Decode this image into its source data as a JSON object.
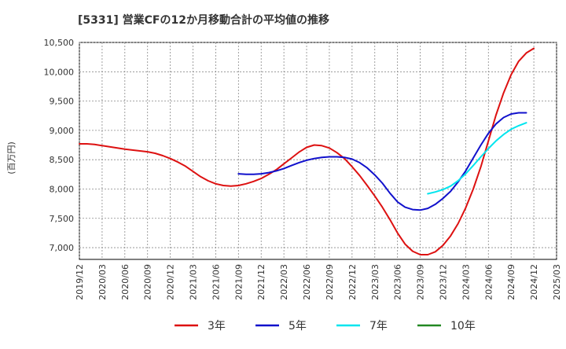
{
  "chart_data": {
    "type": "line",
    "title": "[5331]  営業CFの12か月移動合計の平均値の推移",
    "ylabel": "(百万円)",
    "xlabel": "",
    "ylim": [
      6800,
      10500
    ],
    "y_ticks": [
      7000,
      7500,
      8000,
      8500,
      9000,
      9500,
      10000,
      10500
    ],
    "y_tick_labels": [
      "7,000",
      "7,500",
      "8,000",
      "8,500",
      "9,000",
      "9,500",
      "10,000",
      "10,500"
    ],
    "x_tick_labels": [
      "2019/12",
      "2020/03",
      "2020/06",
      "2020/09",
      "2020/12",
      "2021/03",
      "2021/06",
      "2021/09",
      "2021/12",
      "2022/03",
      "2022/06",
      "2022/09",
      "2022/12",
      "2023/03",
      "2023/06",
      "2023/09",
      "2023/12",
      "2024/03",
      "2024/06",
      "2024/09",
      "2024/12",
      "2025/03"
    ],
    "grid": true,
    "legend_position": "bottom",
    "series": [
      {
        "name": "3年",
        "color": "#dd1111",
        "points": [
          [
            "2019/12",
            8770
          ],
          [
            "2020/01",
            8770
          ],
          [
            "2020/02",
            8760
          ],
          [
            "2020/03",
            8740
          ],
          [
            "2020/04",
            8720
          ],
          [
            "2020/05",
            8700
          ],
          [
            "2020/06",
            8680
          ],
          [
            "2020/07",
            8665
          ],
          [
            "2020/08",
            8650
          ],
          [
            "2020/09",
            8635
          ],
          [
            "2020/10",
            8610
          ],
          [
            "2020/11",
            8570
          ],
          [
            "2020/12",
            8520
          ],
          [
            "2021/01",
            8460
          ],
          [
            "2021/02",
            8390
          ],
          [
            "2021/03",
            8300
          ],
          [
            "2021/04",
            8210
          ],
          [
            "2021/05",
            8140
          ],
          [
            "2021/06",
            8090
          ],
          [
            "2021/07",
            8060
          ],
          [
            "2021/08",
            8050
          ],
          [
            "2021/09",
            8060
          ],
          [
            "2021/10",
            8090
          ],
          [
            "2021/11",
            8130
          ],
          [
            "2021/12",
            8180
          ],
          [
            "2022/01",
            8250
          ],
          [
            "2022/02",
            8330
          ],
          [
            "2022/03",
            8430
          ],
          [
            "2022/04",
            8530
          ],
          [
            "2022/05",
            8630
          ],
          [
            "2022/06",
            8710
          ],
          [
            "2022/07",
            8750
          ],
          [
            "2022/08",
            8740
          ],
          [
            "2022/09",
            8700
          ],
          [
            "2022/10",
            8620
          ],
          [
            "2022/11",
            8520
          ],
          [
            "2022/12",
            8380
          ],
          [
            "2023/01",
            8230
          ],
          [
            "2023/02",
            8060
          ],
          [
            "2023/03",
            7880
          ],
          [
            "2023/04",
            7690
          ],
          [
            "2023/05",
            7480
          ],
          [
            "2023/06",
            7250
          ],
          [
            "2023/07",
            7060
          ],
          [
            "2023/08",
            6940
          ],
          [
            "2023/09",
            6880
          ],
          [
            "2023/10",
            6880
          ],
          [
            "2023/11",
            6930
          ],
          [
            "2023/12",
            7040
          ],
          [
            "2024/01",
            7200
          ],
          [
            "2024/02",
            7410
          ],
          [
            "2024/03",
            7680
          ],
          [
            "2024/04",
            8000
          ],
          [
            "2024/05",
            8380
          ],
          [
            "2024/06",
            8820
          ],
          [
            "2024/07",
            9260
          ],
          [
            "2024/08",
            9640
          ],
          [
            "2024/09",
            9950
          ],
          [
            "2024/10",
            10180
          ],
          [
            "2024/11",
            10320
          ],
          [
            "2024/12",
            10400
          ]
        ]
      },
      {
        "name": "5年",
        "color": "#1111cc",
        "points": [
          [
            "2021/09",
            8260
          ],
          [
            "2021/10",
            8250
          ],
          [
            "2021/11",
            8250
          ],
          [
            "2021/12",
            8260
          ],
          [
            "2022/01",
            8280
          ],
          [
            "2022/02",
            8310
          ],
          [
            "2022/03",
            8350
          ],
          [
            "2022/04",
            8400
          ],
          [
            "2022/05",
            8450
          ],
          [
            "2022/06",
            8490
          ],
          [
            "2022/07",
            8520
          ],
          [
            "2022/08",
            8540
          ],
          [
            "2022/09",
            8550
          ],
          [
            "2022/10",
            8550
          ],
          [
            "2022/11",
            8540
          ],
          [
            "2022/12",
            8510
          ],
          [
            "2023/01",
            8450
          ],
          [
            "2023/02",
            8360
          ],
          [
            "2023/03",
            8240
          ],
          [
            "2023/04",
            8100
          ],
          [
            "2023/05",
            7930
          ],
          [
            "2023/06",
            7780
          ],
          [
            "2023/07",
            7690
          ],
          [
            "2023/08",
            7650
          ],
          [
            "2023/09",
            7640
          ],
          [
            "2023/10",
            7670
          ],
          [
            "2023/11",
            7740
          ],
          [
            "2023/12",
            7840
          ],
          [
            "2024/01",
            7960
          ],
          [
            "2024/02",
            8120
          ],
          [
            "2024/03",
            8310
          ],
          [
            "2024/04",
            8530
          ],
          [
            "2024/05",
            8750
          ],
          [
            "2024/06",
            8950
          ],
          [
            "2024/07",
            9110
          ],
          [
            "2024/08",
            9220
          ],
          [
            "2024/09",
            9280
          ],
          [
            "2024/10",
            9300
          ],
          [
            "2024/11",
            9300
          ]
        ]
      },
      {
        "name": "7年",
        "color": "#00e5ee",
        "points": [
          [
            "2023/10",
            7920
          ],
          [
            "2023/11",
            7950
          ],
          [
            "2023/12",
            7990
          ],
          [
            "2024/01",
            8050
          ],
          [
            "2024/02",
            8140
          ],
          [
            "2024/03",
            8260
          ],
          [
            "2024/04",
            8400
          ],
          [
            "2024/05",
            8550
          ],
          [
            "2024/06",
            8690
          ],
          [
            "2024/07",
            8820
          ],
          [
            "2024/08",
            8930
          ],
          [
            "2024/09",
            9020
          ],
          [
            "2024/10",
            9080
          ],
          [
            "2024/11",
            9130
          ]
        ]
      },
      {
        "name": "10年",
        "color": "#228822",
        "points": []
      }
    ]
  }
}
